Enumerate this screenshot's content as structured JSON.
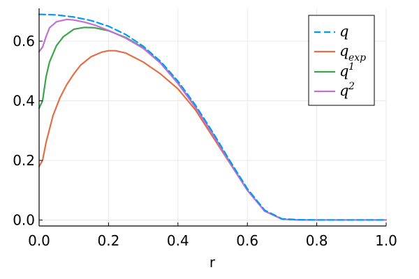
{
  "chart_data": {
    "type": "line",
    "xlabel": "r",
    "ylabel": "",
    "xlim": [
      0,
      1
    ],
    "ylim": [
      -0.02,
      0.71
    ],
    "xticks": [
      0,
      0.2,
      0.4,
      0.6,
      0.8,
      1.0
    ],
    "xtick_labels": [
      "0.0",
      "0.2",
      "0.4",
      "0.6",
      "0.8",
      "1.0"
    ],
    "yticks": [
      0,
      0.2,
      0.4,
      0.6
    ],
    "ytick_labels": [
      "0.0",
      "0.2",
      "0.4",
      "0.6"
    ],
    "grid": true,
    "legend_position": "top-right",
    "series": [
      {
        "name": "q",
        "name_base": "q",
        "name_sub": "",
        "name_sup": "",
        "color": "#009af9",
        "dash": "dashed",
        "x": [
          0,
          0.05,
          0.1,
          0.15,
          0.2,
          0.25,
          0.3,
          0.35,
          0.4,
          0.45,
          0.5,
          0.55,
          0.6,
          0.65,
          0.7,
          0.75,
          0.8,
          0.85,
          0.9,
          0.95,
          1.0
        ],
        "y": [
          0.69,
          0.688,
          0.681,
          0.669,
          0.65,
          0.622,
          0.583,
          0.532,
          0.466,
          0.386,
          0.295,
          0.198,
          0.105,
          0.033,
          0.004,
          0.001,
          0.0,
          0.0,
          0.0,
          0.0,
          0.0
        ]
      },
      {
        "name": "q_exp",
        "name_base": "q",
        "name_sub": "exp",
        "name_sup": "",
        "color": "#e26f46",
        "dash": "solid",
        "x": [
          0,
          0.01,
          0.02,
          0.04,
          0.06,
          0.08,
          0.1,
          0.12,
          0.15,
          0.18,
          0.2,
          0.22,
          0.25,
          0.3,
          0.35,
          0.4,
          0.45,
          0.5,
          0.55,
          0.6,
          0.65,
          0.7,
          0.75,
          0.8,
          0.9,
          1.0
        ],
        "y": [
          0.18,
          0.2,
          0.26,
          0.35,
          0.41,
          0.455,
          0.49,
          0.52,
          0.548,
          0.563,
          0.568,
          0.568,
          0.56,
          0.53,
          0.49,
          0.44,
          0.37,
          0.28,
          0.19,
          0.1,
          0.03,
          0.003,
          0.0,
          0.0,
          0.0,
          0.0
        ]
      },
      {
        "name": "q^1",
        "name_base": "q",
        "name_sub": "",
        "name_sup": "1",
        "color": "#3da44d",
        "dash": "solid",
        "x": [
          0,
          0.01,
          0.02,
          0.03,
          0.05,
          0.07,
          0.1,
          0.13,
          0.16,
          0.2,
          0.25,
          0.3,
          0.35,
          0.4,
          0.45,
          0.5,
          0.55,
          0.6,
          0.65,
          0.7,
          0.75,
          0.8,
          0.9,
          1.0
        ],
        "y": [
          0.375,
          0.4,
          0.48,
          0.53,
          0.585,
          0.615,
          0.64,
          0.646,
          0.645,
          0.635,
          0.612,
          0.578,
          0.528,
          0.46,
          0.38,
          0.29,
          0.193,
          0.1,
          0.03,
          0.003,
          0.0,
          0.0,
          0.0,
          0.0
        ]
      },
      {
        "name": "q^2",
        "name_base": "q",
        "name_sub": "",
        "name_sup": "2",
        "color": "#c271d2",
        "dash": "solid",
        "x": [
          0,
          0.01,
          0.02,
          0.03,
          0.05,
          0.08,
          0.1,
          0.13,
          0.16,
          0.2,
          0.25,
          0.3,
          0.35,
          0.4,
          0.45,
          0.5,
          0.55,
          0.6,
          0.65,
          0.7,
          0.75,
          0.8,
          0.9,
          1.0
        ],
        "y": [
          0.565,
          0.58,
          0.615,
          0.645,
          0.665,
          0.673,
          0.671,
          0.664,
          0.654,
          0.636,
          0.61,
          0.576,
          0.526,
          0.458,
          0.378,
          0.288,
          0.192,
          0.1,
          0.03,
          0.003,
          0.0,
          0.0,
          0.0,
          0.0
        ]
      }
    ]
  }
}
